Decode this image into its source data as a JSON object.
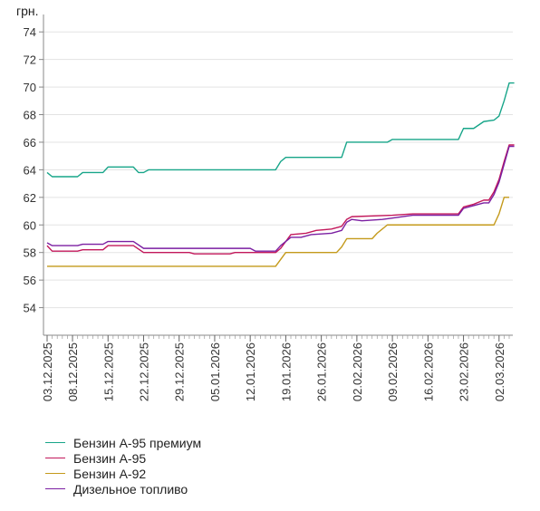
{
  "chart_data": {
    "type": "line",
    "ylabel": "грн.",
    "ylim": [
      52,
      75
    ],
    "yticks": [
      54,
      56,
      58,
      60,
      62,
      64,
      66,
      68,
      70,
      72,
      74
    ],
    "x_start": "2025-12-03",
    "x_end": "2026-03-04",
    "xtick_labels": [
      "03.12.2025",
      "08.12.2025",
      "15.12.2025",
      "22.12.2025",
      "29.12.2025",
      "05.01.2026",
      "12.01.2026",
      "19.01.2026",
      "26.01.2026",
      "02.02.2026",
      "09.02.2026",
      "16.02.2026",
      "23.02.2026",
      "02.03.2026"
    ],
    "legend_position": "bottom-left",
    "grid": "horizontal",
    "series": [
      {
        "name": "Бензин А-95 премиум",
        "color": "#17a589",
        "points": [
          [
            "2025-12-03",
            63.8
          ],
          [
            "2025-12-04",
            63.5
          ],
          [
            "2025-12-09",
            63.5
          ],
          [
            "2025-12-10",
            63.8
          ],
          [
            "2025-12-14",
            63.8
          ],
          [
            "2025-12-15",
            64.2
          ],
          [
            "2025-12-20",
            64.2
          ],
          [
            "2025-12-21",
            63.8
          ],
          [
            "2025-12-22",
            63.8
          ],
          [
            "2025-12-23",
            64.0
          ],
          [
            "2026-01-17",
            64.0
          ],
          [
            "2026-01-18",
            64.6
          ],
          [
            "2026-01-19",
            64.9
          ],
          [
            "2026-01-30",
            64.9
          ],
          [
            "2026-01-31",
            66.0
          ],
          [
            "2026-02-08",
            66.0
          ],
          [
            "2026-02-09",
            66.2
          ],
          [
            "2026-02-22",
            66.2
          ],
          [
            "2026-02-23",
            67.0
          ],
          [
            "2026-02-25",
            67.0
          ],
          [
            "2026-02-27",
            67.5
          ],
          [
            "2026-03-01",
            67.6
          ],
          [
            "2026-03-02",
            67.9
          ],
          [
            "2026-03-03",
            69.0
          ],
          [
            "2026-03-04",
            70.3
          ],
          [
            "2026-03-05",
            70.3
          ]
        ]
      },
      {
        "name": "Бензин А-95",
        "color": "#c2185b",
        "points": [
          [
            "2025-12-03",
            58.5
          ],
          [
            "2025-12-04",
            58.1
          ],
          [
            "2025-12-09",
            58.1
          ],
          [
            "2025-12-10",
            58.2
          ],
          [
            "2025-12-14",
            58.2
          ],
          [
            "2025-12-15",
            58.5
          ],
          [
            "2025-12-20",
            58.5
          ],
          [
            "2025-12-22",
            58.0
          ],
          [
            "2025-12-31",
            58.0
          ],
          [
            "2026-01-01",
            57.9
          ],
          [
            "2026-01-08",
            57.9
          ],
          [
            "2026-01-09",
            58.0
          ],
          [
            "2026-01-17",
            58.0
          ],
          [
            "2026-01-18",
            58.3
          ],
          [
            "2026-01-19",
            58.8
          ],
          [
            "2026-01-20",
            59.3
          ],
          [
            "2026-01-23",
            59.4
          ],
          [
            "2026-01-25",
            59.6
          ],
          [
            "2026-01-28",
            59.7
          ],
          [
            "2026-01-30",
            59.9
          ],
          [
            "2026-01-31",
            60.4
          ],
          [
            "2026-02-01",
            60.6
          ],
          [
            "2026-02-09",
            60.7
          ],
          [
            "2026-02-13",
            60.8
          ],
          [
            "2026-02-22",
            60.8
          ],
          [
            "2026-02-23",
            61.3
          ],
          [
            "2026-02-25",
            61.5
          ],
          [
            "2026-02-27",
            61.8
          ],
          [
            "2026-02-28",
            61.8
          ],
          [
            "2026-03-01",
            62.4
          ],
          [
            "2026-03-02",
            63.3
          ],
          [
            "2026-03-03",
            64.6
          ],
          [
            "2026-03-04",
            65.8
          ],
          [
            "2026-03-05",
            65.8
          ]
        ]
      },
      {
        "name": "Бензин А-92",
        "color": "#c49a1b",
        "points": [
          [
            "2025-12-03",
            57.0
          ],
          [
            "2026-01-17",
            57.0
          ],
          [
            "2026-01-18",
            57.5
          ],
          [
            "2026-01-19",
            58.0
          ],
          [
            "2026-01-29",
            58.0
          ],
          [
            "2026-01-30",
            58.4
          ],
          [
            "2026-01-31",
            59.0
          ],
          [
            "2026-02-05",
            59.0
          ],
          [
            "2026-02-06",
            59.4
          ],
          [
            "2026-02-08",
            60.0
          ],
          [
            "2026-03-01",
            60.0
          ],
          [
            "2026-03-02",
            60.8
          ],
          [
            "2026-03-03",
            62.0
          ],
          [
            "2026-03-04",
            62.0
          ]
        ]
      },
      {
        "name": "Дизельное топливо",
        "color": "#7b1fa2",
        "points": [
          [
            "2025-12-03",
            58.7
          ],
          [
            "2025-12-04",
            58.5
          ],
          [
            "2025-12-09",
            58.5
          ],
          [
            "2025-12-10",
            58.6
          ],
          [
            "2025-12-14",
            58.6
          ],
          [
            "2025-12-15",
            58.8
          ],
          [
            "2025-12-20",
            58.8
          ],
          [
            "2025-12-22",
            58.3
          ],
          [
            "2025-12-23",
            58.3
          ],
          [
            "2026-01-12",
            58.3
          ],
          [
            "2026-01-13",
            58.1
          ],
          [
            "2026-01-17",
            58.1
          ],
          [
            "2026-01-18",
            58.5
          ],
          [
            "2026-01-20",
            59.1
          ],
          [
            "2026-01-22",
            59.1
          ],
          [
            "2026-01-24",
            59.3
          ],
          [
            "2026-01-28",
            59.4
          ],
          [
            "2026-01-30",
            59.6
          ],
          [
            "2026-01-31",
            60.2
          ],
          [
            "2026-02-01",
            60.4
          ],
          [
            "2026-02-03",
            60.3
          ],
          [
            "2026-02-07",
            60.4
          ],
          [
            "2026-02-09",
            60.5
          ],
          [
            "2026-02-13",
            60.7
          ],
          [
            "2026-02-22",
            60.7
          ],
          [
            "2026-02-23",
            61.2
          ],
          [
            "2026-02-25",
            61.4
          ],
          [
            "2026-02-27",
            61.6
          ],
          [
            "2026-02-28",
            61.6
          ],
          [
            "2026-03-01",
            62.2
          ],
          [
            "2026-03-02",
            63.1
          ],
          [
            "2026-03-03",
            64.4
          ],
          [
            "2026-03-04",
            65.7
          ],
          [
            "2026-03-05",
            65.7
          ]
        ]
      }
    ]
  }
}
